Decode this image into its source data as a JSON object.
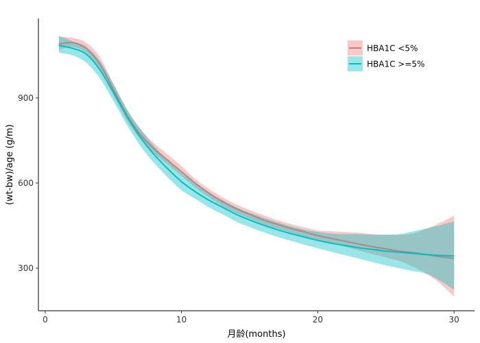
{
  "chart_data": {
    "type": "line",
    "xlabel": "月龄(months)",
    "ylabel": "(wt-bw)/age (g/m)",
    "xlim": [
      -0.5,
      31.5
    ],
    "ylim": [
      150,
      1180
    ],
    "x_ticks": [
      0,
      10,
      20,
      30
    ],
    "y_ticks": [
      300,
      600,
      900
    ],
    "grid": false,
    "legend_position": "top-right",
    "series": [
      {
        "name": "HBA1C <5%",
        "color": "#F8766D",
        "x": [
          1,
          2,
          3,
          4,
          5,
          6,
          7,
          8,
          9,
          10,
          11,
          12,
          13,
          14,
          15,
          16,
          17,
          18,
          19,
          20,
          21,
          22,
          23,
          24,
          25,
          26,
          27,
          28,
          29,
          30
        ],
        "y": [
          1090,
          1095,
          1075,
          1020,
          930,
          840,
          770,
          720,
          680,
          640,
          600,
          565,
          535,
          510,
          490,
          470,
          455,
          440,
          428,
          415,
          405,
          395,
          385,
          376,
          368,
          360,
          355,
          348,
          340,
          335
        ],
        "lower": [
          1070,
          1080,
          1060,
          1000,
          910,
          820,
          755,
          705,
          665,
          625,
          585,
          550,
          520,
          495,
          475,
          455,
          440,
          425,
          412,
          400,
          388,
          376,
          362,
          350,
          338,
          325,
          305,
          280,
          245,
          200
        ],
        "upper": [
          1115,
          1112,
          1095,
          1045,
          950,
          860,
          790,
          740,
          700,
          660,
          615,
          580,
          550,
          525,
          505,
          487,
          470,
          456,
          444,
          433,
          430,
          427,
          425,
          420,
          418,
          418,
          422,
          440,
          460,
          485
        ]
      },
      {
        "name": "HBA1C >=5%",
        "color": "#00BFC4",
        "x": [
          1,
          2,
          3,
          4,
          5,
          6,
          7,
          8,
          9,
          10,
          11,
          12,
          13,
          14,
          15,
          16,
          17,
          18,
          19,
          20,
          21,
          22,
          23,
          24,
          25,
          26,
          27,
          28,
          29,
          30
        ],
        "y": [
          1085,
          1075,
          1055,
          1000,
          920,
          835,
          760,
          700,
          650,
          605,
          570,
          540,
          515,
          490,
          470,
          452,
          436,
          422,
          410,
          398,
          388,
          380,
          372,
          366,
          360,
          356,
          352,
          348,
          345,
          343
        ],
        "lower": [
          1060,
          1050,
          1025,
          970,
          890,
          805,
          730,
          670,
          620,
          575,
          545,
          515,
          490,
          465,
          445,
          427,
          411,
          397,
          383,
          370,
          358,
          346,
          334,
          322,
          310,
          300,
          290,
          280,
          255,
          225
        ],
        "upper": [
          1120,
          1100,
          1080,
          1030,
          950,
          860,
          790,
          730,
          680,
          635,
          600,
          565,
          540,
          515,
          495,
          478,
          462,
          448,
          436,
          428,
          422,
          420,
          420,
          418,
          418,
          420,
          430,
          440,
          452,
          465
        ]
      }
    ]
  }
}
